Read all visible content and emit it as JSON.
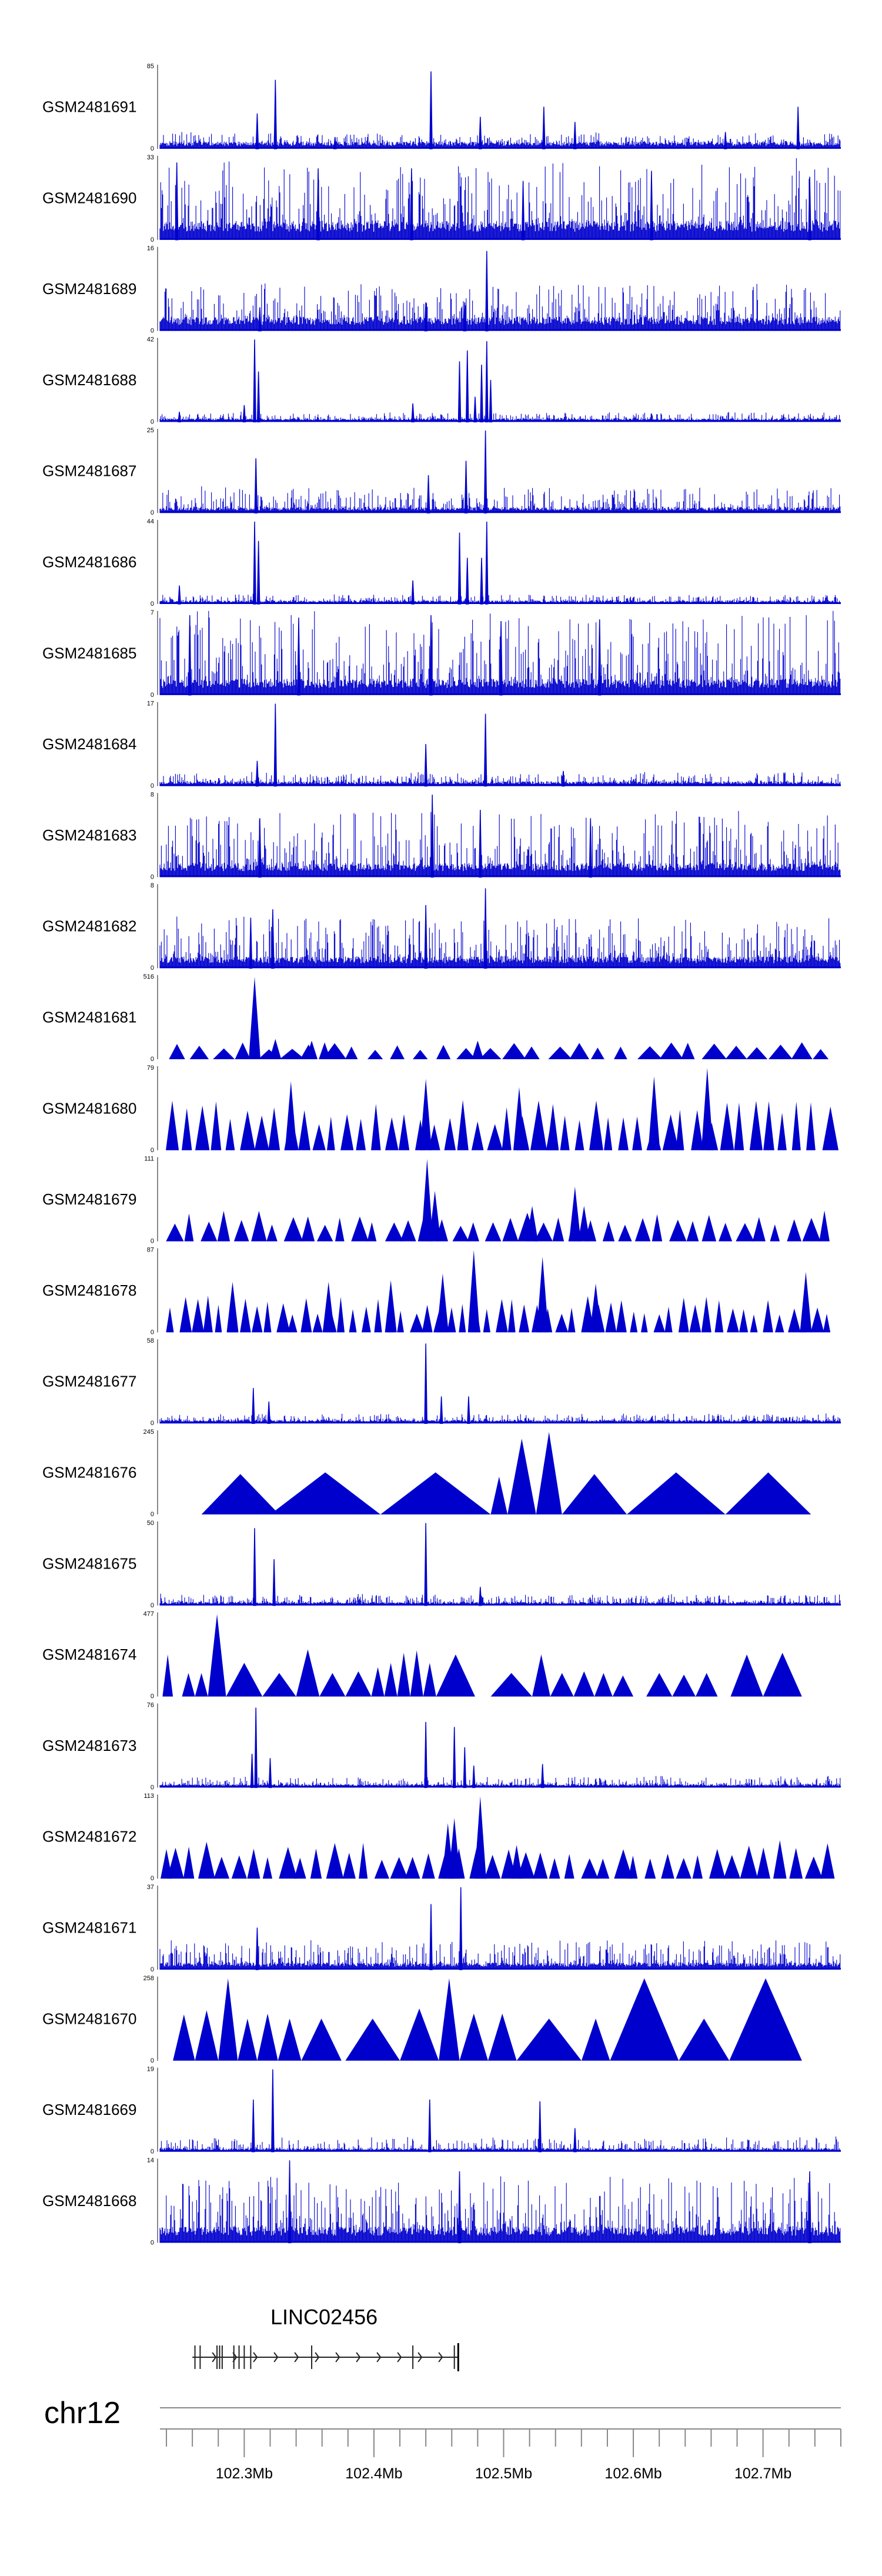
{
  "colors": {
    "signal": "#0000cd",
    "axis": "#888888",
    "text": "#000000"
  },
  "chart_data": {
    "type": "area",
    "title": "",
    "chromosome": "chr12",
    "xlim_mb": [
      102.235,
      102.76
    ],
    "x_ticks": [
      102.3,
      102.4,
      102.5,
      102.6,
      102.7
    ],
    "x_tick_labels": [
      "102.3Mb",
      "102.4Mb",
      "102.5Mb",
      "102.6Mb",
      "102.7Mb"
    ],
    "gene": {
      "name": "LINC02456",
      "start_mb": 102.26,
      "end_mb": 102.465,
      "strand": "+",
      "exons_mb": [
        102.262,
        102.266,
        102.279,
        102.281,
        102.283,
        102.292,
        102.296,
        102.3,
        102.305,
        102.352,
        102.43,
        102.462
      ]
    },
    "tracks": [
      {
        "name": "GSM2481691",
        "ymin": 0,
        "ymax": 85,
        "style": "dense",
        "baseline": 0.06,
        "noise": 0.12,
        "peaks": [
          [
            102.31,
            0.42
          ],
          [
            102.324,
            0.82
          ],
          [
            102.37,
            0.14
          ],
          [
            102.444,
            0.92
          ],
          [
            102.482,
            0.38
          ],
          [
            102.531,
            0.5
          ],
          [
            102.555,
            0.32
          ],
          [
            102.671,
            0.2
          ],
          [
            102.727,
            0.5
          ]
        ]
      },
      {
        "name": "GSM2481690",
        "ymin": 0,
        "ymax": 33,
        "style": "dense",
        "baseline": 0.16,
        "noise": 0.78,
        "peaks": [
          [
            102.248,
            0.92
          ],
          [
            102.357,
            0.85
          ],
          [
            102.429,
            0.85
          ],
          [
            102.515,
            0.7
          ],
          [
            102.614,
            0.82
          ],
          [
            102.736,
            0.75
          ]
        ]
      },
      {
        "name": "GSM2481689",
        "ymin": 0,
        "ymax": 16,
        "style": "dense",
        "baseline": 0.12,
        "noise": 0.42,
        "peaks": [
          [
            102.312,
            0.28
          ],
          [
            102.44,
            0.34
          ],
          [
            102.47,
            0.34
          ],
          [
            102.487,
            0.95
          ]
        ]
      },
      {
        "name": "GSM2481688",
        "ymin": 0,
        "ymax": 42,
        "style": "dense",
        "baseline": 0.03,
        "noise": 0.08,
        "peaks": [
          [
            102.25,
            0.12
          ],
          [
            102.3,
            0.2
          ],
          [
            102.308,
            0.98
          ],
          [
            102.311,
            0.6
          ],
          [
            102.43,
            0.22
          ],
          [
            102.466,
            0.72
          ],
          [
            102.472,
            0.85
          ],
          [
            102.478,
            0.3
          ],
          [
            102.483,
            0.68
          ],
          [
            102.487,
            0.96
          ],
          [
            102.49,
            0.5
          ]
        ]
      },
      {
        "name": "GSM2481687",
        "ymin": 0,
        "ymax": 25,
        "style": "dense",
        "baseline": 0.05,
        "noise": 0.25,
        "peaks": [
          [
            102.309,
            0.65
          ],
          [
            102.442,
            0.45
          ],
          [
            102.471,
            0.62
          ],
          [
            102.486,
            0.98
          ]
        ]
      },
      {
        "name": "GSM2481686",
        "ymin": 0,
        "ymax": 44,
        "style": "dense",
        "baseline": 0.03,
        "noise": 0.08,
        "peaks": [
          [
            102.25,
            0.22
          ],
          [
            102.308,
            0.98
          ],
          [
            102.311,
            0.75
          ],
          [
            102.43,
            0.28
          ],
          [
            102.466,
            0.85
          ],
          [
            102.472,
            0.55
          ],
          [
            102.483,
            0.55
          ],
          [
            102.487,
            0.98
          ]
        ]
      },
      {
        "name": "GSM2481685",
        "ymin": 0,
        "ymax": 7,
        "style": "dense",
        "baseline": 0.14,
        "noise": 0.85,
        "peaks": [
          [
            102.258,
            0.95
          ],
          [
            102.342,
            0.92
          ],
          [
            102.444,
            0.95
          ],
          [
            102.498,
            0.88
          ],
          [
            102.574,
            0.9
          ]
        ]
      },
      {
        "name": "GSM2481684",
        "ymin": 0,
        "ymax": 17,
        "style": "dense",
        "baseline": 0.04,
        "noise": 0.12,
        "peaks": [
          [
            102.31,
            0.3
          ],
          [
            102.324,
            0.98
          ],
          [
            102.44,
            0.5
          ],
          [
            102.486,
            0.86
          ],
          [
            102.546,
            0.18
          ]
        ]
      },
      {
        "name": "GSM2481683",
        "ymin": 0,
        "ymax": 8,
        "style": "dense",
        "baseline": 0.12,
        "noise": 0.65,
        "peaks": [
          [
            102.312,
            0.7
          ],
          [
            102.445,
            0.98
          ],
          [
            102.482,
            0.8
          ],
          [
            102.567,
            0.7
          ]
        ]
      },
      {
        "name": "GSM2481682",
        "ymin": 0,
        "ymax": 8,
        "style": "dense",
        "baseline": 0.1,
        "noise": 0.5,
        "peaks": [
          [
            102.305,
            0.6
          ],
          [
            102.322,
            0.7
          ],
          [
            102.44,
            0.75
          ],
          [
            102.486,
            0.95
          ]
        ]
      },
      {
        "name": "GSM2481681",
        "ymin": 0,
        "ymax": 516,
        "style": "sparse",
        "n": 30,
        "amp": 0.18,
        "peaks": [
          [
            102.308,
            0.98
          ],
          [
            102.324,
            0.24
          ],
          [
            102.352,
            0.22
          ],
          [
            102.362,
            0.2
          ],
          [
            102.48,
            0.22
          ]
        ]
      },
      {
        "name": "GSM2481680",
        "ymin": 0,
        "ymax": 79,
        "style": "sparse",
        "n": 46,
        "amp": 0.52,
        "peaks": [
          [
            102.336,
            0.82
          ],
          [
            102.44,
            0.85
          ],
          [
            102.512,
            0.75
          ],
          [
            102.538,
            0.55
          ],
          [
            102.616,
            0.88
          ],
          [
            102.657,
            0.98
          ]
        ]
      },
      {
        "name": "GSM2481679",
        "ymin": 0,
        "ymax": 111,
        "style": "sparse",
        "n": 40,
        "amp": 0.32,
        "peaks": [
          [
            102.441,
            0.98
          ],
          [
            102.447,
            0.6
          ],
          [
            102.555,
            0.65
          ],
          [
            102.562,
            0.42
          ],
          [
            102.522,
            0.42
          ]
        ]
      },
      {
        "name": "GSM2481678",
        "ymin": 0,
        "ymax": 87,
        "style": "sparse",
        "n": 55,
        "amp": 0.38,
        "peaks": [
          [
            102.291,
            0.6
          ],
          [
            102.365,
            0.6
          ],
          [
            102.413,
            0.62
          ],
          [
            102.453,
            0.7
          ],
          [
            102.477,
            0.98
          ],
          [
            102.53,
            0.9
          ],
          [
            102.571,
            0.58
          ],
          [
            102.733,
            0.72
          ]
        ]
      },
      {
        "name": "GSM2481677",
        "ymin": 0,
        "ymax": 58,
        "style": "dense",
        "baseline": 0.03,
        "noise": 0.08,
        "peaks": [
          [
            102.307,
            0.42
          ],
          [
            102.319,
            0.26
          ],
          [
            102.44,
            0.95
          ],
          [
            102.452,
            0.32
          ],
          [
            102.473,
            0.32
          ]
        ]
      },
      {
        "name": "GSM2481676",
        "ymin": 0,
        "ymax": 245,
        "style": "tri",
        "segs": [
          [
            102.267,
            102.327,
            0.48
          ],
          [
            102.327,
            102.32,
            0.0
          ],
          [
            102.32,
            102.405,
            0.5
          ],
          [
            102.405,
            102.49,
            0.5
          ],
          [
            102.49,
            102.49,
            0.0
          ],
          [
            102.49,
            102.503,
            0.45
          ],
          [
            102.503,
            102.525,
            0.9
          ],
          [
            102.525,
            102.545,
            0.98
          ],
          [
            102.545,
            102.595,
            0.48
          ],
          [
            102.595,
            102.671,
            0.5
          ],
          [
            102.671,
            102.737,
            0.5
          ]
        ]
      },
      {
        "name": "GSM2481675",
        "ymin": 0,
        "ymax": 50,
        "style": "dense",
        "baseline": 0.03,
        "noise": 0.1,
        "peaks": [
          [
            102.308,
            0.92
          ],
          [
            102.323,
            0.55
          ],
          [
            102.44,
            0.98
          ],
          [
            102.482,
            0.22
          ]
        ]
      },
      {
        "name": "GSM2481674",
        "ymin": 0,
        "ymax": 477,
        "style": "tri",
        "segs": [
          [
            102.237,
            102.245,
            0.5
          ],
          [
            102.252,
            102.262,
            0.28
          ],
          [
            102.262,
            102.272,
            0.28
          ],
          [
            102.272,
            102.286,
            0.98
          ],
          [
            102.286,
            102.314,
            0.4
          ],
          [
            102.314,
            102.34,
            0.28
          ],
          [
            102.34,
            102.358,
            0.56
          ],
          [
            102.358,
            102.378,
            0.28
          ],
          [
            102.378,
            102.398,
            0.3
          ],
          [
            102.398,
            102.408,
            0.35
          ],
          [
            102.408,
            102.418,
            0.4
          ],
          [
            102.418,
            102.428,
            0.52
          ],
          [
            102.428,
            102.438,
            0.55
          ],
          [
            102.438,
            102.448,
            0.4
          ],
          [
            102.448,
            102.478,
            0.5
          ],
          [
            102.49,
            102.522,
            0.28
          ],
          [
            102.522,
            102.536,
            0.5
          ],
          [
            102.536,
            102.554,
            0.28
          ],
          [
            102.554,
            102.57,
            0.3
          ],
          [
            102.57,
            102.584,
            0.28
          ],
          [
            102.584,
            102.6,
            0.25
          ],
          [
            102.61,
            102.63,
            0.28
          ],
          [
            102.63,
            102.648,
            0.26
          ],
          [
            102.648,
            102.665,
            0.28
          ],
          [
            102.675,
            102.7,
            0.5
          ],
          [
            102.7,
            102.73,
            0.52
          ]
        ]
      },
      {
        "name": "GSM2481673",
        "ymin": 0,
        "ymax": 76,
        "style": "dense",
        "baseline": 0.03,
        "noise": 0.1,
        "peaks": [
          [
            102.306,
            0.4
          ],
          [
            102.309,
            0.95
          ],
          [
            102.32,
            0.35
          ],
          [
            102.44,
            0.78
          ],
          [
            102.462,
            0.72
          ],
          [
            102.47,
            0.48
          ],
          [
            102.477,
            0.26
          ],
          [
            102.53,
            0.28
          ]
        ]
      },
      {
        "name": "GSM2481672",
        "ymin": 0,
        "ymax": 113,
        "style": "sparse",
        "n": 42,
        "amp": 0.4,
        "peaks": [
          [
            102.24,
            0.35
          ],
          [
            102.457,
            0.66
          ],
          [
            102.462,
            0.72
          ],
          [
            102.482,
            0.98
          ],
          [
            102.51,
            0.4
          ]
        ]
      },
      {
        "name": "GSM2481671",
        "ymin": 0,
        "ymax": 37,
        "style": "dense",
        "baseline": 0.06,
        "noise": 0.28,
        "peaks": [
          [
            102.31,
            0.5
          ],
          [
            102.444,
            0.78
          ],
          [
            102.467,
            0.98
          ]
        ]
      },
      {
        "name": "GSM2481670",
        "ymin": 0,
        "ymax": 258,
        "style": "tri",
        "segs": [
          [
            102.245,
            102.262,
            0.55
          ],
          [
            102.262,
            102.28,
            0.6
          ],
          [
            102.28,
            102.295,
            0.98
          ],
          [
            102.295,
            102.31,
            0.5
          ],
          [
            102.31,
            102.326,
            0.56
          ],
          [
            102.326,
            102.344,
            0.5
          ],
          [
            102.344,
            102.375,
            0.5
          ],
          [
            102.378,
            102.42,
            0.5
          ],
          [
            102.42,
            102.45,
            0.62
          ],
          [
            102.45,
            102.466,
            0.98
          ],
          [
            102.466,
            102.488,
            0.56
          ],
          [
            102.488,
            102.51,
            0.56
          ],
          [
            102.51,
            102.56,
            0.5
          ],
          [
            102.56,
            102.582,
            0.5
          ],
          [
            102.582,
            102.635,
            0.98
          ],
          [
            102.635,
            102.674,
            0.5
          ],
          [
            102.674,
            102.73,
            0.98
          ]
        ]
      },
      {
        "name": "GSM2481669",
        "ymin": 0,
        "ymax": 19,
        "style": "dense",
        "baseline": 0.03,
        "noise": 0.14,
        "peaks": [
          [
            102.307,
            0.62
          ],
          [
            102.322,
            0.98
          ],
          [
            102.443,
            0.62
          ],
          [
            102.528,
            0.6
          ],
          [
            102.555,
            0.28
          ]
        ]
      },
      {
        "name": "GSM2481668",
        "ymin": 0,
        "ymax": 14,
        "style": "dense",
        "baseline": 0.14,
        "noise": 0.62,
        "peaks": [
          [
            102.335,
            0.98
          ],
          [
            102.466,
            0.85
          ],
          [
            102.736,
            0.85
          ]
        ]
      }
    ]
  }
}
